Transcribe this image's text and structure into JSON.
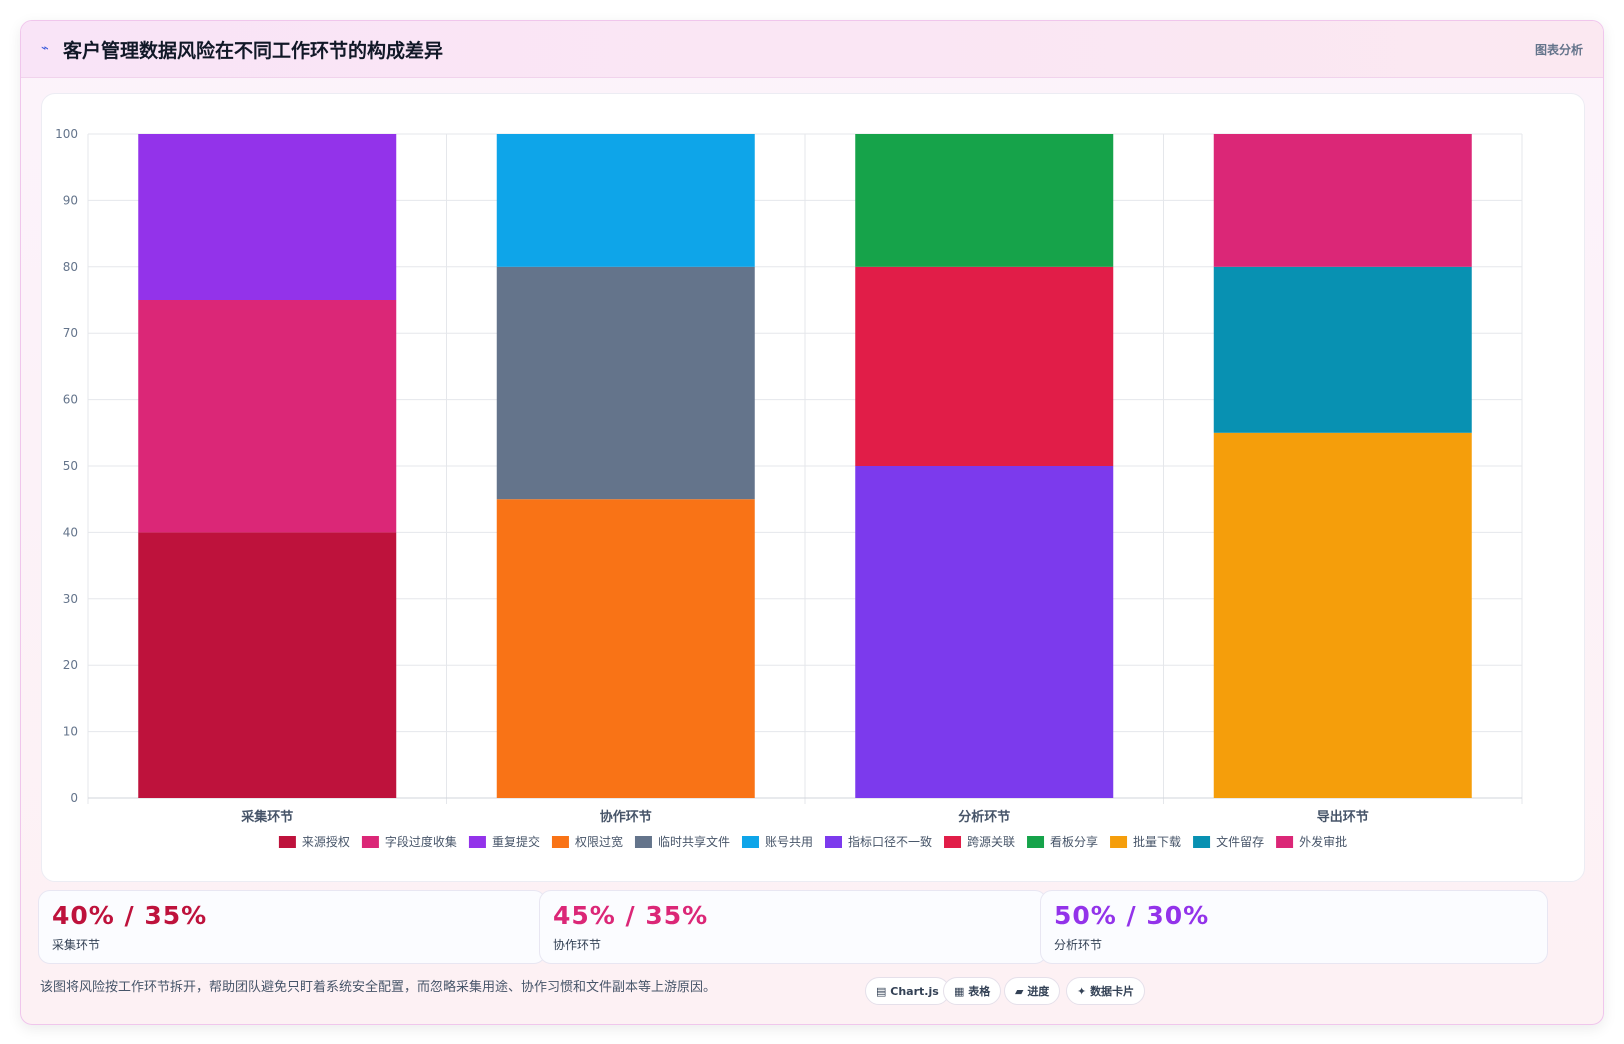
{
  "header": {
    "title_icon": "trend-icon",
    "title": "客户管理数据风险在不同工作环节的构成差异",
    "right_label": "图表分析"
  },
  "chart_data": {
    "type": "bar",
    "stacked": true,
    "categories": [
      "采集环节",
      "协作环节",
      "分析环节",
      "导出环节"
    ],
    "ylim": [
      0,
      100
    ],
    "yticks": [
      0,
      10,
      20,
      30,
      40,
      50,
      60,
      70,
      80,
      90,
      100
    ],
    "legend_position": "bottom",
    "grid": true,
    "series": [
      {
        "name": "来源授权",
        "color": "#be123c",
        "values": [
          40,
          0,
          0,
          0
        ]
      },
      {
        "name": "字段过度收集",
        "color": "#db2777",
        "values": [
          35,
          0,
          0,
          0
        ]
      },
      {
        "name": "重复提交",
        "color": "#9333ea",
        "values": [
          25,
          0,
          0,
          0
        ]
      },
      {
        "name": "权限过宽",
        "color": "#f97316",
        "values": [
          0,
          45,
          0,
          0
        ]
      },
      {
        "name": "临时共享文件",
        "color": "#64748b",
        "values": [
          0,
          35,
          0,
          0
        ]
      },
      {
        "name": "账号共用",
        "color": "#0ea5e9",
        "values": [
          0,
          20,
          0,
          0
        ]
      },
      {
        "name": "指标口径不一致",
        "color": "#7c3aed",
        "values": [
          0,
          0,
          50,
          0
        ]
      },
      {
        "name": "跨源关联",
        "color": "#e11d48",
        "values": [
          0,
          0,
          30,
          0
        ]
      },
      {
        "name": "看板分享",
        "color": "#16a34a",
        "values": [
          0,
          0,
          20,
          0
        ]
      },
      {
        "name": "批量下载",
        "color": "#f59e0b",
        "values": [
          0,
          0,
          0,
          55
        ]
      },
      {
        "name": "文件留存",
        "color": "#0891b2",
        "values": [
          0,
          0,
          0,
          25
        ]
      },
      {
        "name": "外发审批",
        "color": "#db2777",
        "values": [
          0,
          0,
          0,
          20
        ]
      }
    ]
  },
  "stats": [
    {
      "value": "40% / 35%",
      "label": "采集环节",
      "color": "#be123c"
    },
    {
      "value": "45% / 35%",
      "label": "协作环节",
      "color": "#db2777"
    },
    {
      "value": "50% / 30%",
      "label": "分析环节",
      "color": "#9333ea"
    }
  ],
  "footnote": "该图将风险按工作环节拆开，帮助团队避免只盯着系统安全配置，而忽略采集用途、协作习惯和文件副本等上游原因。",
  "pills": [
    {
      "icon": "chart-icon",
      "label": "Chart.js"
    },
    {
      "icon": "table-icon",
      "label": "表格"
    },
    {
      "icon": "progress-icon",
      "label": "进度"
    },
    {
      "icon": "card-icon",
      "label": "数据卡片"
    }
  ]
}
